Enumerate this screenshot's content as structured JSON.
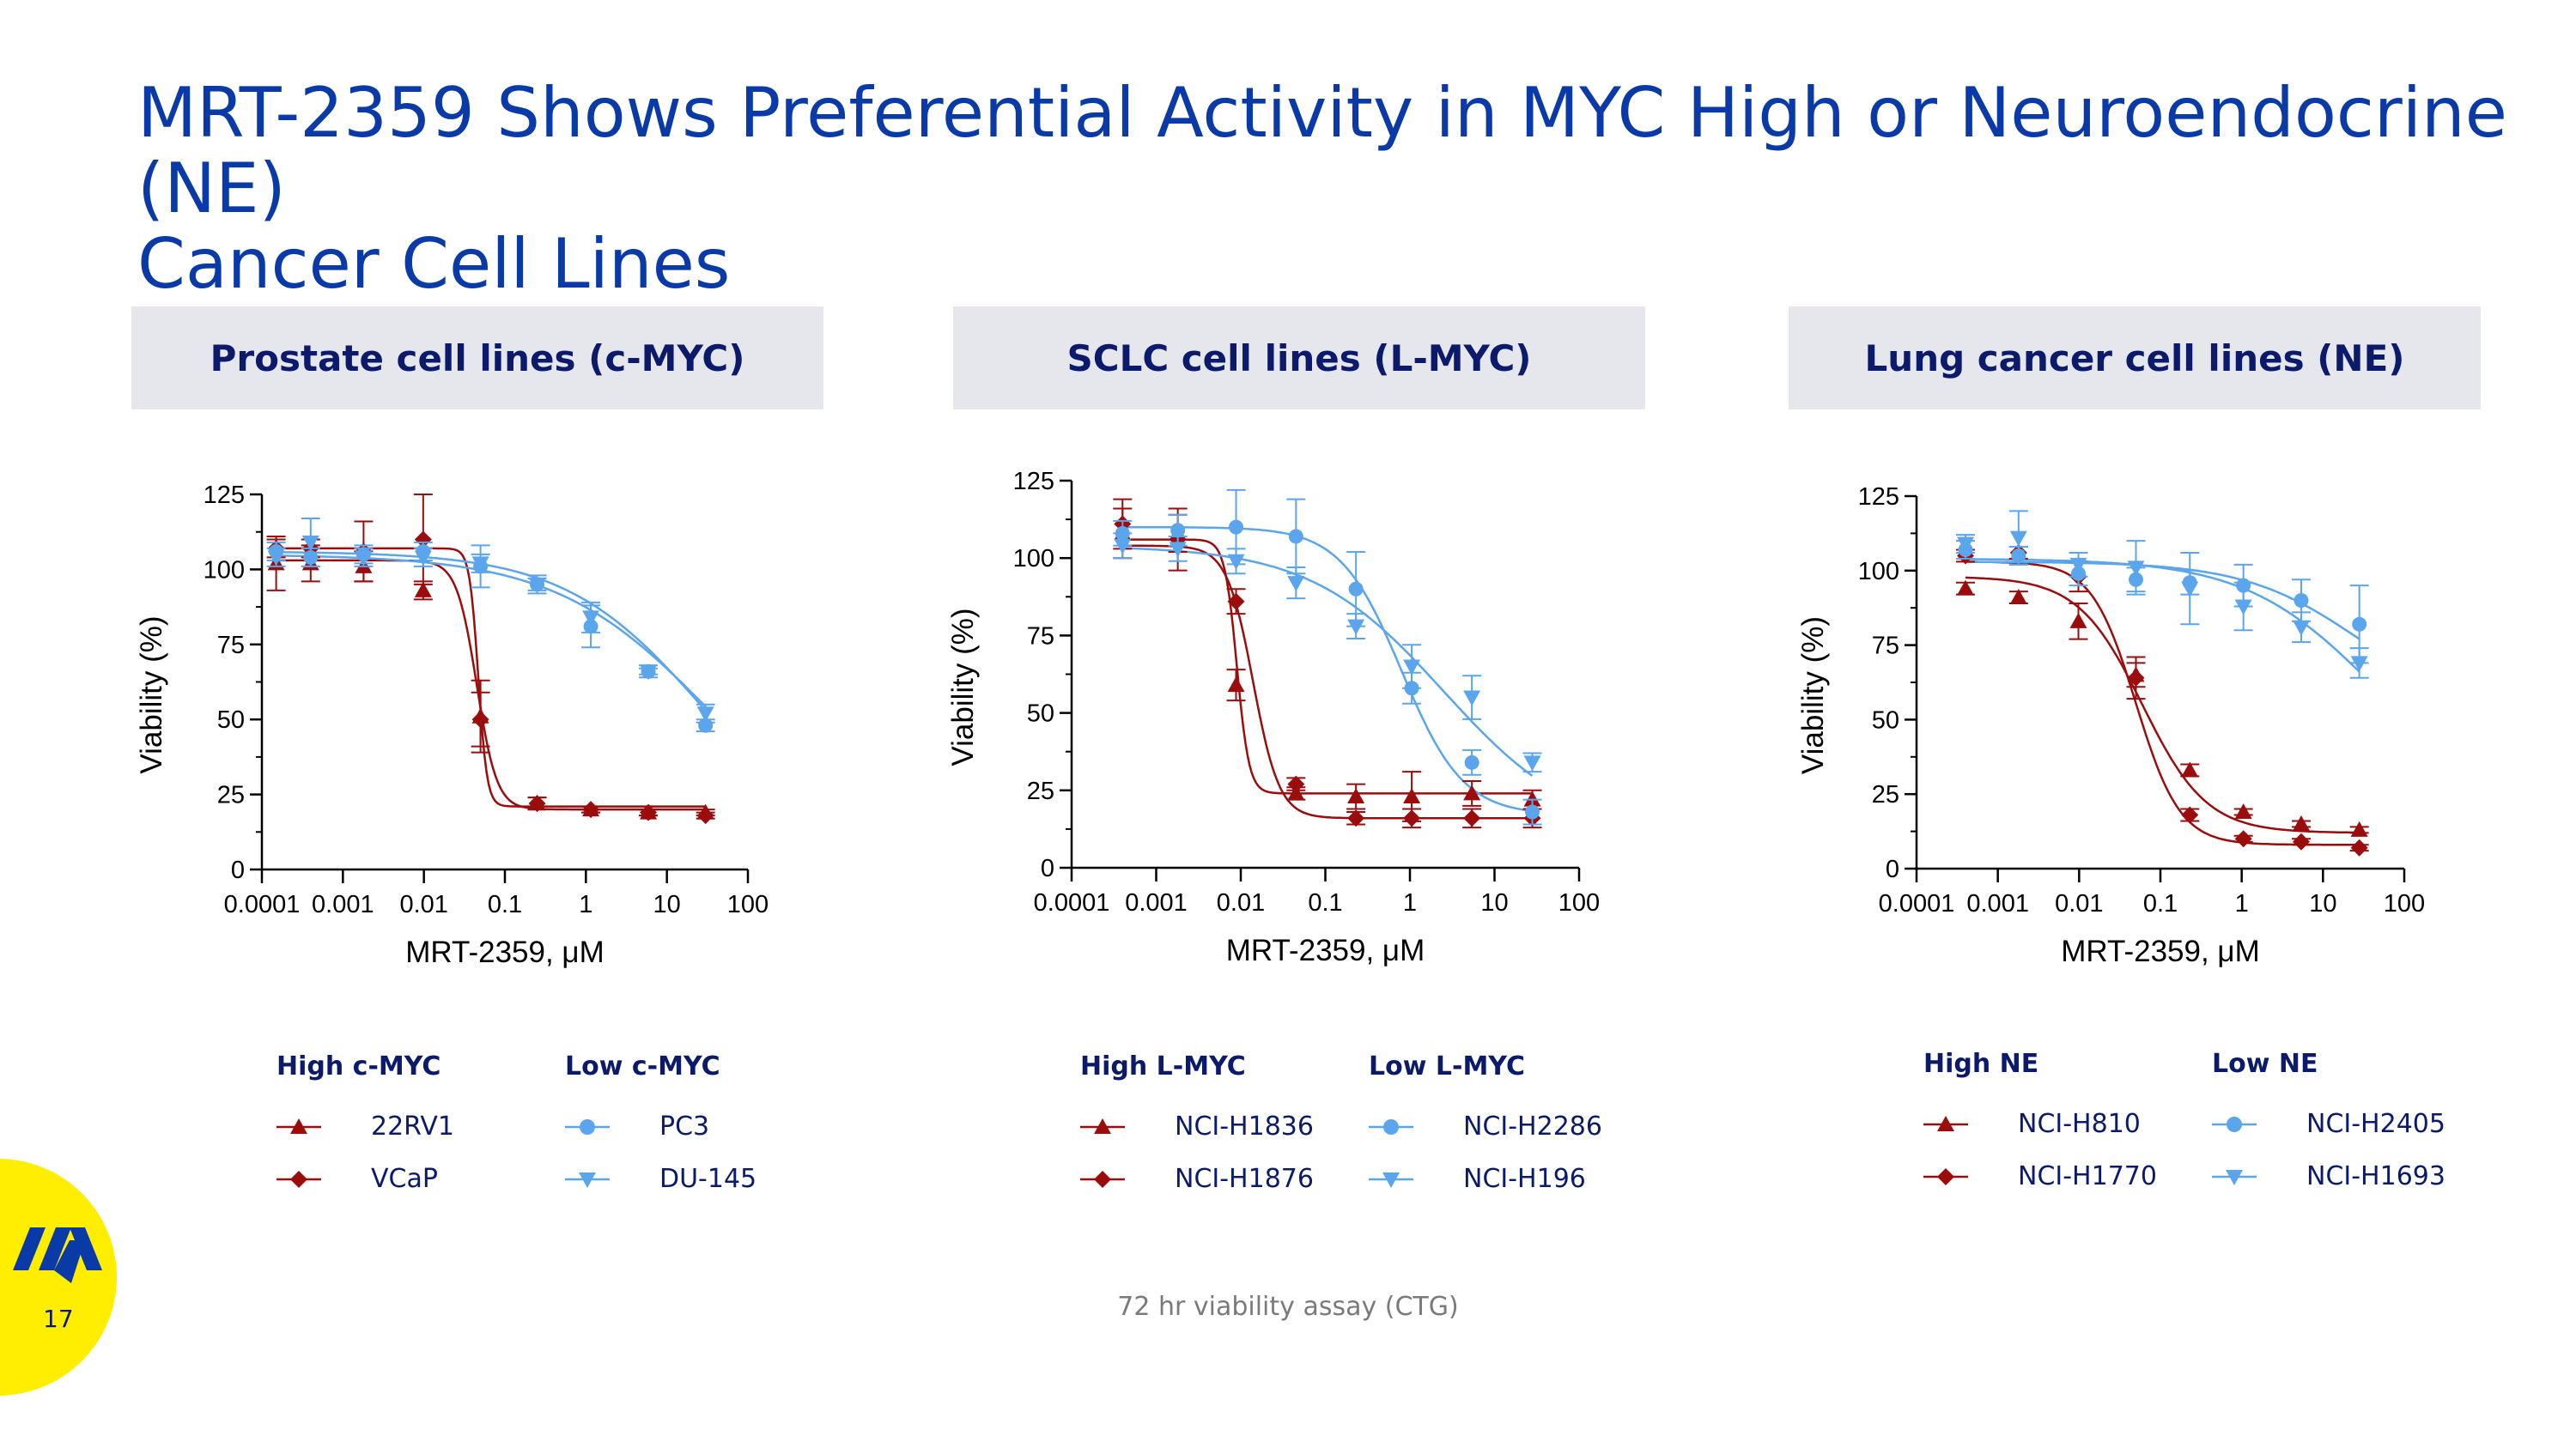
{
  "title": {
    "line1": "MRT-2359 Shows Preferential Activity in MYC High or Neuroendocrine (NE)",
    "line2": "Cancer Cell Lines"
  },
  "colors": {
    "title": "#0a3aa8",
    "header_bg": "#e6e7ec",
    "header_text": "#0b1a6b",
    "high_series": "#9b0d0d",
    "low_series": "#5aa5ec",
    "logo_bg": "#ffee00",
    "logo_mark": "#0a3aa8"
  },
  "footnote": "72 hr viability assay (CTG)",
  "page_number": "17",
  "logo": "monte-rosa-logo",
  "chart_data": [
    {
      "type": "scatter",
      "header": "Prostate cell lines (c-MYC)",
      "xlabel": "MRT-2359, μM",
      "ylabel": "Viability (%)",
      "xscale": "log",
      "xlim": [
        0.0001,
        100
      ],
      "ylim": [
        0,
        125
      ],
      "x_ticks": [
        "0.0001",
        "0.001",
        "0.01",
        "0.1",
        "1",
        "10",
        "100"
      ],
      "y_ticks": [
        "0",
        "25",
        "50",
        "75",
        "100",
        "125"
      ],
      "legend": {
        "high_title": "High c-MYC",
        "low_title": "Low c-MYC"
      },
      "series": [
        {
          "name": "22RV1",
          "group": "high",
          "marker": "triangle-up",
          "x": [
            0.00015,
            0.0004,
            0.0018,
            0.0098,
            0.05,
            0.25,
            1.15,
            5.9,
            30
          ],
          "y": [
            102,
            102,
            101,
            93,
            51,
            22,
            20,
            19,
            19
          ],
          "err": [
            9,
            6,
            5,
            3,
            12,
            2,
            1,
            1,
            1
          ]
        },
        {
          "name": "VCaP",
          "group": "high",
          "marker": "diamond",
          "x": [
            0.00015,
            0.0004,
            0.0018,
            0.0098,
            0.05,
            0.25,
            1.15,
            5.9,
            30
          ],
          "y": [
            107,
            107,
            106,
            110,
            50,
            22,
            20,
            19,
            18
          ],
          "err": [
            3,
            3,
            10,
            15,
            9,
            2,
            1,
            1,
            1
          ]
        },
        {
          "name": "PC3",
          "group": "low",
          "marker": "circle",
          "x": [
            0.00015,
            0.0004,
            0.0018,
            0.0098,
            0.05,
            0.25,
            1.15,
            5.9,
            30
          ],
          "y": [
            106,
            104,
            105,
            106,
            101,
            95,
            81,
            66,
            48
          ],
          "err": [
            3,
            3,
            3,
            3,
            7,
            2,
            7,
            1,
            2
          ]
        },
        {
          "name": "DU-145",
          "group": "low",
          "marker": "triangle-down",
          "x": [
            0.00015,
            0.0004,
            0.0018,
            0.0098,
            0.05,
            0.25,
            1.15,
            5.9,
            30
          ],
          "y": [
            104,
            109,
            104,
            104,
            102,
            95,
            84,
            66,
            52
          ],
          "err": [
            3,
            8,
            3,
            3,
            3,
            3,
            5,
            2,
            3
          ]
        }
      ],
      "fits": {
        "22RV1": {
          "top": 103,
          "bottom": 20,
          "ec50": 0.045,
          "hill": 3.5
        },
        "VCaP": {
          "top": 107,
          "bottom": 21,
          "ec50": 0.047,
          "hill": 8
        },
        "PC3": {
          "top": 106,
          "bottom": 0,
          "ec50": 30,
          "hill": 0.5
        },
        "DU-145": {
          "top": 105,
          "bottom": 0,
          "ec50": 35,
          "hill": 0.45
        }
      }
    },
    {
      "type": "scatter",
      "header": "SCLC cell lines (L-MYC)",
      "xlabel": "MRT-2359, μM",
      "ylabel": "Viability (%)",
      "xscale": "log",
      "xlim": [
        0.0001,
        100
      ],
      "ylim": [
        0,
        125
      ],
      "x_ticks": [
        "0.0001",
        "0.001",
        "0.01",
        "0.1",
        "1",
        "10",
        "100"
      ],
      "y_ticks": [
        "0",
        "25",
        "50",
        "75",
        "100",
        "125"
      ],
      "legend": {
        "high_title": "High L-MYC",
        "low_title": "Low L-MYC"
      },
      "series": [
        {
          "name": "NCI-H1836",
          "group": "high",
          "marker": "triangle-up",
          "x": [
            0.0004,
            0.0018,
            0.0088,
            0.045,
            0.23,
            1.05,
            5.4,
            28
          ],
          "y": [
            108,
            108,
            59,
            24,
            23,
            23,
            24,
            22
          ],
          "err": [
            8,
            6,
            5,
            2,
            4,
            8,
            4,
            3
          ]
        },
        {
          "name": "NCI-H1876",
          "group": "high",
          "marker": "diamond",
          "x": [
            0.0004,
            0.0018,
            0.0088,
            0.045,
            0.23,
            1.05,
            5.4,
            28
          ],
          "y": [
            111,
            106,
            86,
            27,
            16,
            16,
            16,
            16
          ],
          "err": [
            8,
            10,
            4,
            2,
            2,
            3,
            3,
            3
          ]
        },
        {
          "name": "NCI-H2286",
          "group": "low",
          "marker": "circle",
          "x": [
            0.0004,
            0.0018,
            0.0088,
            0.045,
            0.23,
            1.05,
            5.4,
            28
          ],
          "y": [
            108,
            109,
            110,
            107,
            90,
            58,
            34,
            18
          ],
          "err": [
            4,
            5,
            12,
            12,
            12,
            5,
            4,
            4
          ]
        },
        {
          "name": "NCI-H196",
          "group": "low",
          "marker": "triangle-down",
          "x": [
            0.0004,
            0.0018,
            0.0088,
            0.045,
            0.23,
            1.05,
            5.4,
            28
          ],
          "y": [
            104,
            103,
            99,
            92,
            78,
            65,
            55,
            34
          ],
          "err": [
            4,
            4,
            4,
            5,
            4,
            7,
            7,
            3
          ]
        }
      ],
      "fits": {
        "NCI-H1836": {
          "top": 106,
          "bottom": 24,
          "ec50": 0.009,
          "hill": 6
        },
        "NCI-H1876": {
          "top": 104,
          "bottom": 16,
          "ec50": 0.014,
          "hill": 2.8
        },
        "NCI-H2286": {
          "top": 110,
          "bottom": 17,
          "ec50": 0.8,
          "hill": 1.2
        },
        "NCI-H196": {
          "top": 104,
          "bottom": 10,
          "ec50": 2.5,
          "hill": 0.55
        }
      }
    },
    {
      "type": "scatter",
      "header": "Lung cancer cell lines (NE)",
      "xlabel": "MRT-2359, μM",
      "ylabel": "Viability (%)",
      "xscale": "log",
      "xlim": [
        0.0001,
        100
      ],
      "ylim": [
        0,
        125
      ],
      "x_ticks": [
        "0.0001",
        "0.001",
        "0.01",
        "0.1",
        "1",
        "10",
        "100"
      ],
      "y_ticks": [
        "0",
        "25",
        "50",
        "75",
        "100",
        "125"
      ],
      "legend": {
        "high_title": "High NE",
        "low_title": "Low NE"
      },
      "series": [
        {
          "name": "NCI-H810",
          "group": "high",
          "marker": "triangle-up",
          "x": [
            0.0004,
            0.0018,
            0.0098,
            0.05,
            0.23,
            1.05,
            5.4,
            28
          ],
          "y": [
            94,
            91,
            83,
            65,
            33,
            19,
            15,
            13
          ],
          "err": [
            2,
            2,
            6,
            4,
            2,
            1,
            1,
            1
          ]
        },
        {
          "name": "NCI-H1770",
          "group": "high",
          "marker": "diamond",
          "x": [
            0.0004,
            0.0018,
            0.0098,
            0.05,
            0.23,
            1.05,
            5.4,
            28
          ],
          "y": [
            105,
            106,
            98,
            64,
            18,
            10,
            9,
            7
          ],
          "err": [
            2,
            2,
            5,
            7,
            2,
            1,
            1,
            1
          ]
        },
        {
          "name": "NCI-H2405",
          "group": "low",
          "marker": "circle",
          "x": [
            0.0004,
            0.0018,
            0.0098,
            0.05,
            0.23,
            1.05,
            5.4,
            28
          ],
          "y": [
            107,
            105,
            99,
            97,
            96,
            95,
            90,
            82
          ],
          "err": [
            3,
            3,
            4,
            4,
            4,
            7,
            7,
            13
          ]
        },
        {
          "name": "NCI-H1693",
          "group": "low",
          "marker": "triangle-down",
          "x": [
            0.0004,
            0.0018,
            0.0098,
            0.05,
            0.23,
            1.05,
            5.4,
            28
          ],
          "y": [
            109,
            111,
            102,
            101,
            94,
            88,
            81,
            69
          ],
          "err": [
            3,
            9,
            4,
            9,
            12,
            8,
            5,
            5
          ]
        }
      ],
      "fits": {
        "NCI-H810": {
          "top": 98,
          "bottom": 12,
          "ec50": 0.06,
          "hill": 1.1
        },
        "NCI-H1770": {
          "top": 103,
          "bottom": 8,
          "ec50": 0.05,
          "hill": 1.6
        },
        "NCI-H2405": {
          "top": 103,
          "bottom": 50,
          "ec50": 30,
          "hill": 0.6
        },
        "NCI-H1693": {
          "top": 104,
          "bottom": 20,
          "ec50": 40,
          "hill": 0.55
        }
      }
    }
  ]
}
